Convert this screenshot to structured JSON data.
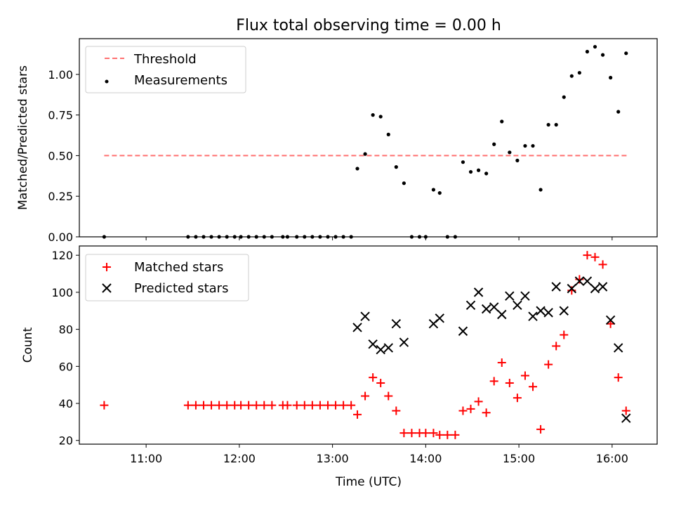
{
  "chart_data": [
    {
      "type": "scatter",
      "title": "Flux total observing time = 0.00 h",
      "xlabel": "",
      "ylabel": "Matched/Predicted stars",
      "ylim": [
        0,
        1.22
      ],
      "yticks": [
        "0.00",
        "0.25",
        "0.50",
        "0.75",
        "1.00"
      ],
      "legend_position": "top-left",
      "threshold": {
        "name": "Threshold",
        "value": 0.5,
        "x_start": "10:33",
        "x_end": "16:10",
        "color": "#ff7070",
        "style": "dashed"
      },
      "series": [
        {
          "name": "Measurements",
          "color": "#000000",
          "marker": "dot",
          "points": [
            [
              "10:33",
              0.0
            ],
            [
              "11:27",
              0.0
            ],
            [
              "11:32",
              0.0
            ],
            [
              "11:37",
              0.0
            ],
            [
              "11:42",
              0.0
            ],
            [
              "11:47",
              0.0
            ],
            [
              "11:52",
              0.0
            ],
            [
              "11:57",
              0.0
            ],
            [
              "12:01",
              0.0
            ],
            [
              "12:06",
              0.0
            ],
            [
              "12:11",
              0.0
            ],
            [
              "12:16",
              0.0
            ],
            [
              "12:21",
              0.0
            ],
            [
              "12:28",
              0.0
            ],
            [
              "12:31",
              0.0
            ],
            [
              "12:37",
              0.0
            ],
            [
              "12:42",
              0.0
            ],
            [
              "12:47",
              0.0
            ],
            [
              "12:52",
              0.0
            ],
            [
              "12:57",
              0.0
            ],
            [
              "13:02",
              0.0
            ],
            [
              "13:07",
              0.0
            ],
            [
              "13:12",
              0.0
            ],
            [
              "13:16",
              0.42
            ],
            [
              "13:21",
              0.51
            ],
            [
              "13:26",
              0.75
            ],
            [
              "13:31",
              0.74
            ],
            [
              "13:36",
              0.63
            ],
            [
              "13:41",
              0.43
            ],
            [
              "13:46",
              0.33
            ],
            [
              "13:51",
              0.0
            ],
            [
              "13:56",
              0.0
            ],
            [
              "14:00",
              0.0
            ],
            [
              "14:05",
              0.29
            ],
            [
              "14:09",
              0.27
            ],
            [
              "14:14",
              0.0
            ],
            [
              "14:19",
              0.0
            ],
            [
              "14:24",
              0.46
            ],
            [
              "14:29",
              0.4
            ],
            [
              "14:34",
              0.41
            ],
            [
              "14:39",
              0.39
            ],
            [
              "14:44",
              0.57
            ],
            [
              "14:49",
              0.71
            ],
            [
              "14:54",
              0.52
            ],
            [
              "14:59",
              0.47
            ],
            [
              "15:04",
              0.56
            ],
            [
              "15:09",
              0.56
            ],
            [
              "15:14",
              0.29
            ],
            [
              "15:19",
              0.69
            ],
            [
              "15:24",
              0.69
            ],
            [
              "15:29",
              0.86
            ],
            [
              "15:34",
              0.99
            ],
            [
              "15:39",
              1.01
            ],
            [
              "15:44",
              1.14
            ],
            [
              "15:49",
              1.17
            ],
            [
              "15:54",
              1.12
            ],
            [
              "15:59",
              0.98
            ],
            [
              "16:04",
              0.77
            ],
            [
              "16:09",
              1.13
            ]
          ]
        }
      ]
    },
    {
      "type": "scatter",
      "title": "",
      "xlabel": "Time (UTC)",
      "ylabel": "Count",
      "ylim": [
        18,
        125
      ],
      "yticks": [
        "20",
        "40",
        "60",
        "80",
        "100",
        "120"
      ],
      "xticks": [
        "11:00",
        "12:00",
        "13:00",
        "14:00",
        "15:00",
        "16:00"
      ],
      "legend_position": "top-left",
      "series": [
        {
          "name": "Matched stars",
          "color": "#ff0000",
          "marker": "plus",
          "points": [
            [
              "10:33",
              39
            ],
            [
              "11:27",
              39
            ],
            [
              "11:32",
              39
            ],
            [
              "11:37",
              39
            ],
            [
              "11:42",
              39
            ],
            [
              "11:47",
              39
            ],
            [
              "11:52",
              39
            ],
            [
              "11:57",
              39
            ],
            [
              "12:01",
              39
            ],
            [
              "12:06",
              39
            ],
            [
              "12:11",
              39
            ],
            [
              "12:16",
              39
            ],
            [
              "12:21",
              39
            ],
            [
              "12:28",
              39
            ],
            [
              "12:31",
              39
            ],
            [
              "12:37",
              39
            ],
            [
              "12:42",
              39
            ],
            [
              "12:47",
              39
            ],
            [
              "12:52",
              39
            ],
            [
              "12:57",
              39
            ],
            [
              "13:02",
              39
            ],
            [
              "13:07",
              39
            ],
            [
              "13:12",
              39
            ],
            [
              "13:16",
              34
            ],
            [
              "13:21",
              44
            ],
            [
              "13:26",
              54
            ],
            [
              "13:31",
              51
            ],
            [
              "13:36",
              44
            ],
            [
              "13:41",
              36
            ],
            [
              "13:46",
              24
            ],
            [
              "13:51",
              24
            ],
            [
              "13:56",
              24
            ],
            [
              "14:00",
              24
            ],
            [
              "14:05",
              24
            ],
            [
              "14:09",
              23
            ],
            [
              "14:14",
              23
            ],
            [
              "14:19",
              23
            ],
            [
              "14:24",
              36
            ],
            [
              "14:29",
              37
            ],
            [
              "14:34",
              41
            ],
            [
              "14:39",
              35
            ],
            [
              "14:44",
              52
            ],
            [
              "14:49",
              62
            ],
            [
              "14:54",
              51
            ],
            [
              "14:59",
              43
            ],
            [
              "15:04",
              55
            ],
            [
              "15:09",
              49
            ],
            [
              "15:14",
              26
            ],
            [
              "15:19",
              61
            ],
            [
              "15:24",
              71
            ],
            [
              "15:29",
              77
            ],
            [
              "15:34",
              101
            ],
            [
              "15:39",
              107
            ],
            [
              "15:44",
              120
            ],
            [
              "15:49",
              119
            ],
            [
              "15:54",
              115
            ],
            [
              "15:59",
              83
            ],
            [
              "16:04",
              54
            ],
            [
              "16:09",
              36
            ]
          ]
        },
        {
          "name": "Predicted stars",
          "color": "#000000",
          "marker": "x",
          "points": [
            [
              "13:16",
              81
            ],
            [
              "13:21",
              87
            ],
            [
              "13:26",
              72
            ],
            [
              "13:31",
              69
            ],
            [
              "13:36",
              70
            ],
            [
              "13:41",
              83
            ],
            [
              "13:46",
              73
            ],
            [
              "14:05",
              83
            ],
            [
              "14:09",
              86
            ],
            [
              "14:24",
              79
            ],
            [
              "14:29",
              93
            ],
            [
              "14:34",
              100
            ],
            [
              "14:39",
              91
            ],
            [
              "14:44",
              92
            ],
            [
              "14:49",
              88
            ],
            [
              "14:54",
              98
            ],
            [
              "14:59",
              93
            ],
            [
              "15:04",
              98
            ],
            [
              "15:09",
              87
            ],
            [
              "15:14",
              90
            ],
            [
              "15:19",
              89
            ],
            [
              "15:24",
              103
            ],
            [
              "15:29",
              90
            ],
            [
              "15:34",
              102
            ],
            [
              "15:39",
              106
            ],
            [
              "15:44",
              106
            ],
            [
              "15:49",
              102
            ],
            [
              "15:54",
              103
            ],
            [
              "15:59",
              85
            ],
            [
              "16:04",
              70
            ],
            [
              "16:09",
              32
            ]
          ]
        }
      ]
    }
  ]
}
